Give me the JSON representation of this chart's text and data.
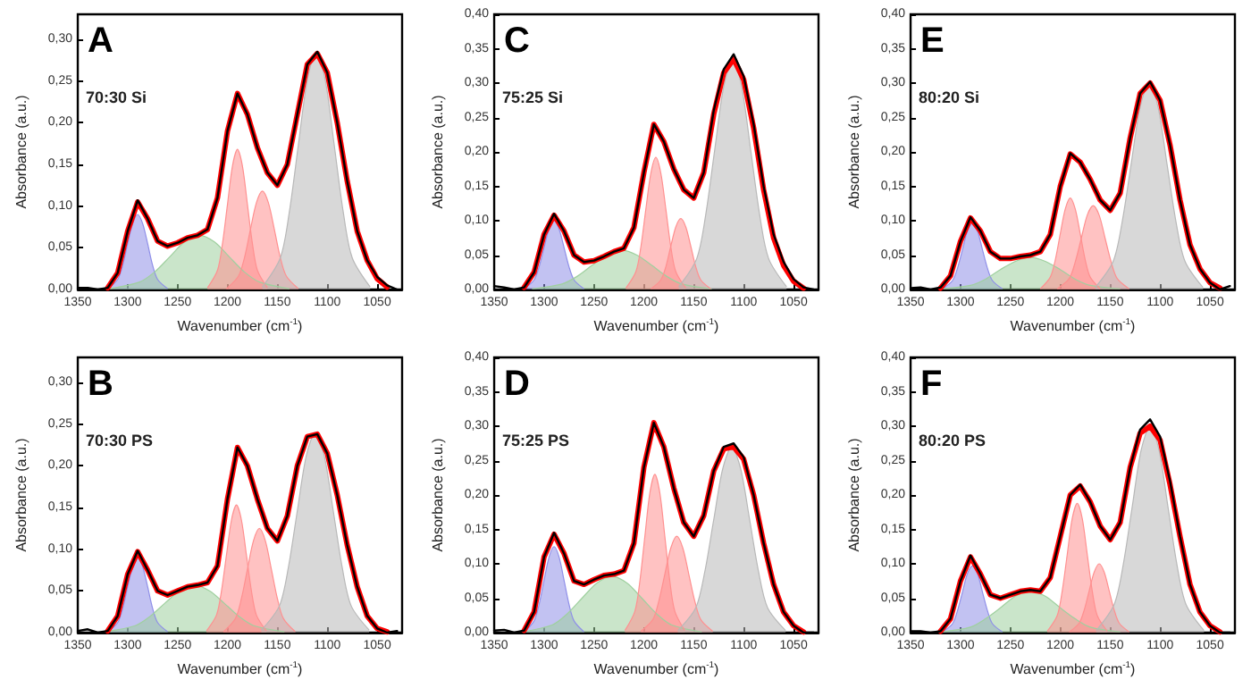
{
  "chart_data": [
    {
      "type": "line",
      "title": "A",
      "annotations": [
        "70:30 Si"
      ],
      "xlabel": "Wavenumber (cm$^{-1}$)",
      "ylabel": "Absorbance (a.u.)",
      "xlim": [
        1350,
        1025
      ],
      "xticks": [
        1350,
        1300,
        1250,
        1200,
        1150,
        1100,
        1050
      ],
      "ylim": [
        0,
        0.33
      ],
      "yticks": [
        {
          "value": 0,
          "label": "0,00"
        },
        {
          "value": 0.05,
          "label": "0,05"
        },
        {
          "value": 0.1,
          "label": "0,10"
        },
        {
          "value": 0.15,
          "label": "0,15"
        },
        {
          "value": 0.2,
          "label": "0,20"
        },
        {
          "value": 0.25,
          "label": "0,25"
        },
        {
          "value": 0.3,
          "label": "0,30"
        }
      ],
      "x": [
        1350,
        1340,
        1330,
        1320,
        1310,
        1300,
        1290,
        1280,
        1270,
        1260,
        1250,
        1240,
        1230,
        1220,
        1210,
        1200,
        1190,
        1180,
        1170,
        1160,
        1150,
        1140,
        1130,
        1120,
        1110,
        1100,
        1090,
        1080,
        1070,
        1060,
        1050,
        1040,
        1030
      ],
      "series": [
        {
          "type": "area",
          "color": "#8f8fe8",
          "x": [
            1260,
            1270,
            1275,
            1280,
            1285,
            1290,
            1295,
            1300,
            1305,
            1310,
            1320
          ],
          "values": [
            0.001,
            0.012,
            0.029,
            0.055,
            0.079,
            0.09,
            0.079,
            0.055,
            0.029,
            0.012,
            0.001
          ]
        },
        {
          "type": "area",
          "color": "#9fd09f",
          "x": [
            1138,
            1168,
            1183,
            1198,
            1213,
            1228,
            1243,
            1258,
            1273,
            1288,
            1318
          ],
          "values": [
            0.001,
            0.009,
            0.021,
            0.039,
            0.057,
            0.065,
            0.057,
            0.039,
            0.021,
            0.009,
            0.001
          ]
        },
        {
          "type": "area",
          "color": "#ff9090",
          "x": [
            1160,
            1170,
            1175,
            1180,
            1185,
            1190,
            1195,
            1200,
            1205,
            1210,
            1220
          ],
          "values": [
            0.002,
            0.023,
            0.055,
            0.102,
            0.148,
            0.168,
            0.148,
            0.102,
            0.055,
            0.023,
            0.002
          ]
        },
        {
          "type": "area",
          "color": "#ff9090",
          "x": [
            1129,
            1141,
            1147,
            1153,
            1159,
            1165,
            1171,
            1177,
            1183,
            1189,
            1201
          ],
          "values": [
            0.001,
            0.016,
            0.038,
            0.072,
            0.104,
            0.118,
            0.104,
            0.072,
            0.038,
            0.016,
            0.001
          ]
        },
        {
          "type": "area",
          "color": "#b8b8b8",
          "x": [
            1057,
            1075,
            1084,
            1093,
            1102,
            1111,
            1120,
            1129,
            1138,
            1147,
            1165
          ],
          "values": [
            0.003,
            0.038,
            0.093,
            0.173,
            0.251,
            0.285,
            0.251,
            0.173,
            0.093,
            0.038,
            0.003
          ]
        },
        {
          "type": "line",
          "color": "#ff0000",
          "x": [
            1320,
            1310,
            1300,
            1290,
            1280,
            1270,
            1260,
            1250,
            1240,
            1230,
            1220,
            1210,
            1200,
            1190,
            1180,
            1170,
            1160,
            1150,
            1140,
            1130,
            1120,
            1110,
            1100,
            1090,
            1080,
            1070,
            1060,
            1050,
            1040
          ],
          "values": [
            0.002,
            0.02,
            0.07,
            0.105,
            0.085,
            0.058,
            0.052,
            0.056,
            0.062,
            0.065,
            0.072,
            0.11,
            0.19,
            0.235,
            0.21,
            0.17,
            0.14,
            0.125,
            0.15,
            0.21,
            0.27,
            0.283,
            0.26,
            0.2,
            0.13,
            0.07,
            0.035,
            0.013,
            0.003
          ]
        },
        {
          "type": "line",
          "color": "#000000",
          "values": [
            0.002,
            0.002,
            0,
            0.002,
            0.02,
            0.07,
            0.107,
            0.085,
            0.058,
            0.052,
            0.056,
            0.062,
            0.065,
            0.072,
            0.11,
            0.19,
            0.235,
            0.21,
            0.17,
            0.14,
            0.125,
            0.15,
            0.21,
            0.27,
            0.285,
            0.26,
            0.2,
            0.13,
            0.07,
            0.035,
            0.015,
            0.005,
            0
          ]
        }
      ]
    },
    {
      "type": "line",
      "title": "C",
      "annotations": [
        "75:25 Si"
      ],
      "xlabel": "Wavenumber (cm$^{-1}$)",
      "ylabel": "Absorbance (a.u.)",
      "xlim": [
        1350,
        1025
      ],
      "xticks": [
        1350,
        1300,
        1250,
        1200,
        1150,
        1100,
        1050
      ],
      "ylim": [
        0,
        0.4
      ],
      "yticks": [
        {
          "value": 0,
          "label": "0,00"
        },
        {
          "value": 0.05,
          "label": "0,05"
        },
        {
          "value": 0.1,
          "label": "0,10"
        },
        {
          "value": 0.15,
          "label": "0,15"
        },
        {
          "value": 0.2,
          "label": "0,20"
        },
        {
          "value": 0.25,
          "label": "0,25"
        },
        {
          "value": 0.3,
          "label": "0,30"
        },
        {
          "value": 0.35,
          "label": "0,35"
        },
        {
          "value": 0.4,
          "label": "0,40"
        }
      ],
      "x": [
        1350,
        1340,
        1330,
        1320,
        1310,
        1300,
        1290,
        1280,
        1270,
        1260,
        1250,
        1240,
        1230,
        1220,
        1210,
        1200,
        1190,
        1180,
        1170,
        1160,
        1150,
        1140,
        1130,
        1120,
        1110,
        1100,
        1090,
        1080,
        1070,
        1060,
        1050,
        1040,
        1030
      ],
      "series": [
        {
          "type": "area",
          "color": "#8f8fe8",
          "x": [
            1260,
            1270,
            1275,
            1280,
            1285,
            1290,
            1295,
            1300,
            1305,
            1310,
            1320
          ],
          "values": [
            0.001,
            0.014,
            0.033,
            0.061,
            0.088,
            0.1,
            0.088,
            0.061,
            0.033,
            0.014,
            0.001
          ]
        },
        {
          "type": "area",
          "color": "#9fd09f",
          "x": [
            1132,
            1162,
            1177,
            1192,
            1207,
            1222,
            1237,
            1252,
            1267,
            1282,
            1312
          ],
          "values": [
            0.001,
            0.008,
            0.019,
            0.035,
            0.05,
            0.057,
            0.05,
            0.035,
            0.019,
            0.008,
            0.001
          ]
        },
        {
          "type": "area",
          "color": "#ff9090",
          "x": [
            1158,
            1168,
            1173,
            1178,
            1183,
            1188,
            1193,
            1198,
            1203,
            1208,
            1218
          ],
          "values": [
            0.002,
            0.026,
            0.062,
            0.117,
            0.169,
            0.192,
            0.169,
            0.117,
            0.062,
            0.026,
            0.002
          ]
        },
        {
          "type": "area",
          "color": "#ff9090",
          "x": [
            1133,
            1143,
            1148,
            1153,
            1158,
            1163,
            1168,
            1173,
            1178,
            1183,
            1193
          ],
          "values": [
            0.001,
            0.014,
            0.033,
            0.063,
            0.091,
            0.103,
            0.091,
            0.063,
            0.033,
            0.014,
            0.001
          ]
        },
        {
          "type": "area",
          "color": "#b8b8b8",
          "x": [
            1057,
            1075,
            1084,
            1093,
            1102,
            1111,
            1120,
            1129,
            1138,
            1147,
            1165
          ],
          "values": [
            0.004,
            0.045,
            0.109,
            0.203,
            0.295,
            0.335,
            0.295,
            0.203,
            0.109,
            0.045,
            0.004
          ]
        },
        {
          "type": "line",
          "color": "#ff0000",
          "x": [
            1320,
            1310,
            1300,
            1290,
            1280,
            1270,
            1260,
            1250,
            1240,
            1230,
            1220,
            1210,
            1200,
            1190,
            1180,
            1170,
            1160,
            1150,
            1140,
            1130,
            1120,
            1110,
            1100,
            1090,
            1080,
            1070,
            1060,
            1050,
            1040
          ],
          "values": [
            0.003,
            0.025,
            0.08,
            0.108,
            0.085,
            0.05,
            0.04,
            0.042,
            0.048,
            0.055,
            0.06,
            0.09,
            0.17,
            0.24,
            0.215,
            0.175,
            0.145,
            0.133,
            0.17,
            0.255,
            0.315,
            0.335,
            0.305,
            0.235,
            0.145,
            0.075,
            0.035,
            0.012,
            0.002
          ]
        },
        {
          "type": "line",
          "color": "#000000",
          "values": [
            0.005,
            0.003,
            0,
            0.003,
            0.025,
            0.08,
            0.11,
            0.085,
            0.05,
            0.04,
            0.042,
            0.048,
            0.055,
            0.06,
            0.09,
            0.17,
            0.24,
            0.215,
            0.175,
            0.145,
            0.133,
            0.17,
            0.26,
            0.32,
            0.342,
            0.31,
            0.24,
            0.15,
            0.08,
            0.04,
            0.015,
            0.003,
            0
          ]
        }
      ]
    },
    {
      "type": "line",
      "title": "E",
      "annotations": [
        "80:20 Si"
      ],
      "xlabel": "Wavenumber (cm$^{-1}$)",
      "ylabel": "Absorbance (a.u.)",
      "xlim": [
        1350,
        1025
      ],
      "xticks": [
        1350,
        1300,
        1250,
        1200,
        1150,
        1100,
        1050
      ],
      "ylim": [
        0,
        0.4
      ],
      "yticks": [
        {
          "value": 0,
          "label": "0,00"
        },
        {
          "value": 0.05,
          "label": "0,05"
        },
        {
          "value": 0.1,
          "label": "0,10"
        },
        {
          "value": 0.15,
          "label": "0,15"
        },
        {
          "value": 0.2,
          "label": "0,20"
        },
        {
          "value": 0.25,
          "label": "0,25"
        },
        {
          "value": 0.3,
          "label": "0,30"
        },
        {
          "value": 0.35,
          "label": "0,35"
        },
        {
          "value": 0.4,
          "label": "0,40"
        }
      ],
      "x": [
        1350,
        1340,
        1330,
        1320,
        1310,
        1300,
        1290,
        1280,
        1270,
        1260,
        1250,
        1240,
        1230,
        1220,
        1210,
        1200,
        1190,
        1180,
        1170,
        1160,
        1150,
        1140,
        1130,
        1120,
        1110,
        1100,
        1090,
        1080,
        1070,
        1060,
        1050,
        1040,
        1030
      ],
      "series": [
        {
          "type": "area",
          "color": "#8f8fe8",
          "x": [
            1258,
            1268,
            1273,
            1278,
            1283,
            1288,
            1293,
            1298,
            1303,
            1308,
            1318
          ],
          "values": [
            0.001,
            0.013,
            0.031,
            0.058,
            0.085,
            0.096,
            0.085,
            0.058,
            0.031,
            0.013,
            0.001
          ]
        },
        {
          "type": "area",
          "color": "#9fd09f",
          "x": [
            1140,
            1170,
            1185,
            1200,
            1215,
            1230,
            1245,
            1260,
            1275,
            1290,
            1320
          ],
          "values": [
            0.001,
            0.006,
            0.015,
            0.029,
            0.041,
            0.047,
            0.041,
            0.029,
            0.015,
            0.006,
            0.001
          ]
        },
        {
          "type": "area",
          "color": "#ff9090",
          "x": [
            1160,
            1170,
            1175,
            1180,
            1185,
            1190,
            1195,
            1200,
            1205,
            1210,
            1220
          ],
          "values": [
            0.001,
            0.018,
            0.043,
            0.081,
            0.117,
            0.133,
            0.117,
            0.081,
            0.043,
            0.018,
            0.001
          ]
        },
        {
          "type": "area",
          "color": "#ff9090",
          "x": [
            1131,
            1143,
            1149,
            1155,
            1161,
            1167,
            1173,
            1179,
            1185,
            1191,
            1203
          ],
          "values": [
            0.001,
            0.016,
            0.04,
            0.074,
            0.108,
            0.122,
            0.108,
            0.074,
            0.04,
            0.016,
            0.001
          ]
        },
        {
          "type": "area",
          "color": "#b8b8b8",
          "x": [
            1057,
            1075,
            1084,
            1093,
            1102,
            1111,
            1120,
            1129,
            1138,
            1147,
            1165
          ],
          "values": [
            0.003,
            0.041,
            0.098,
            0.182,
            0.265,
            0.3,
            0.265,
            0.182,
            0.098,
            0.041,
            0.003
          ]
        },
        {
          "type": "line",
          "color": "#ff0000",
          "x": [
            1320,
            1310,
            1300,
            1290,
            1280,
            1270,
            1260,
            1250,
            1240,
            1230,
            1220,
            1210,
            1200,
            1190,
            1180,
            1170,
            1160,
            1150,
            1140,
            1130,
            1120,
            1110,
            1100,
            1090,
            1080,
            1070,
            1060,
            1050,
            1040
          ],
          "values": [
            0.002,
            0.02,
            0.07,
            0.104,
            0.085,
            0.055,
            0.045,
            0.045,
            0.048,
            0.05,
            0.055,
            0.08,
            0.15,
            0.197,
            0.185,
            0.16,
            0.13,
            0.115,
            0.14,
            0.22,
            0.285,
            0.3,
            0.275,
            0.21,
            0.13,
            0.065,
            0.03,
            0.01,
            0.002
          ]
        },
        {
          "type": "line",
          "color": "#000000",
          "values": [
            0.002,
            0.003,
            0,
            0.003,
            0.02,
            0.07,
            0.105,
            0.085,
            0.055,
            0.045,
            0.045,
            0.048,
            0.05,
            0.055,
            0.08,
            0.15,
            0.198,
            0.185,
            0.16,
            0.13,
            0.115,
            0.14,
            0.22,
            0.285,
            0.302,
            0.275,
            0.21,
            0.13,
            0.065,
            0.03,
            0.01,
            0,
            0.005
          ]
        }
      ]
    },
    {
      "type": "line",
      "title": "B",
      "annotations": [
        "70:30 PS"
      ],
      "xlabel": "Wavenumber (cm$^{-1}$)",
      "ylabel": "Absorbance (a.u.)",
      "xlim": [
        1350,
        1025
      ],
      "xticks": [
        1350,
        1300,
        1250,
        1200,
        1150,
        1100,
        1050
      ],
      "ylim": [
        0,
        0.33
      ],
      "yticks": [
        {
          "value": 0,
          "label": "0,00"
        },
        {
          "value": 0.05,
          "label": "0,05"
        },
        {
          "value": 0.1,
          "label": "0,10"
        },
        {
          "value": 0.15,
          "label": "0,15"
        },
        {
          "value": 0.2,
          "label": "0,20"
        },
        {
          "value": 0.25,
          "label": "0,25"
        },
        {
          "value": 0.3,
          "label": "0,30"
        }
      ],
      "x": [
        1350,
        1340,
        1330,
        1320,
        1310,
        1300,
        1290,
        1280,
        1270,
        1260,
        1250,
        1240,
        1230,
        1220,
        1210,
        1200,
        1190,
        1180,
        1170,
        1160,
        1150,
        1140,
        1130,
        1120,
        1110,
        1100,
        1090,
        1080,
        1070,
        1060,
        1050,
        1040,
        1030
      ],
      "series": [
        {
          "type": "area",
          "color": "#8f8fe8",
          "x": [
            1260,
            1270,
            1275,
            1280,
            1285,
            1290,
            1295,
            1300,
            1305,
            1310,
            1320
          ],
          "values": [
            0.001,
            0.012,
            0.029,
            0.055,
            0.079,
            0.09,
            0.079,
            0.055,
            0.029,
            0.012,
            0.001
          ]
        },
        {
          "type": "area",
          "color": "#9fd09f",
          "x": [
            1143,
            1173,
            1188,
            1203,
            1218,
            1233,
            1248,
            1263,
            1278,
            1293,
            1323
          ],
          "values": [
            0.001,
            0.008,
            0.019,
            0.035,
            0.05,
            0.057,
            0.05,
            0.035,
            0.019,
            0.008,
            0.001
          ]
        },
        {
          "type": "area",
          "color": "#ff9090",
          "x": [
            1161,
            1171,
            1176,
            1181,
            1186,
            1191,
            1196,
            1201,
            1206,
            1211,
            1221
          ],
          "values": [
            0.002,
            0.021,
            0.05,
            0.093,
            0.135,
            0.153,
            0.135,
            0.093,
            0.05,
            0.021,
            0.002
          ]
        },
        {
          "type": "area",
          "color": "#ff9090",
          "x": [
            1132,
            1144,
            1150,
            1156,
            1162,
            1168,
            1174,
            1180,
            1186,
            1192,
            1204
          ],
          "values": [
            0.001,
            0.017,
            0.041,
            0.076,
            0.11,
            0.125,
            0.11,
            0.076,
            0.041,
            0.017,
            0.001
          ]
        },
        {
          "type": "area",
          "color": "#b8b8b8",
          "x": [
            1058,
            1076,
            1085,
            1094,
            1103,
            1112,
            1121,
            1130,
            1139,
            1148,
            1166
          ],
          "values": [
            0.003,
            0.032,
            0.078,
            0.146,
            0.212,
            0.24,
            0.212,
            0.146,
            0.078,
            0.032,
            0.003
          ]
        },
        {
          "type": "line",
          "color": "#ff0000",
          "x": [
            1320,
            1310,
            1300,
            1290,
            1280,
            1270,
            1260,
            1250,
            1240,
            1230,
            1220,
            1210,
            1200,
            1190,
            1180,
            1170,
            1160,
            1150,
            1140,
            1130,
            1120,
            1110,
            1100,
            1090,
            1080,
            1070,
            1060,
            1050,
            1040
          ],
          "values": [
            0.002,
            0.02,
            0.07,
            0.097,
            0.075,
            0.05,
            0.045,
            0.05,
            0.055,
            0.057,
            0.06,
            0.08,
            0.16,
            0.222,
            0.2,
            0.16,
            0.125,
            0.11,
            0.14,
            0.2,
            0.235,
            0.238,
            0.215,
            0.165,
            0.105,
            0.055,
            0.02,
            0.005,
            0.001
          ]
        },
        {
          "type": "line",
          "color": "#000000",
          "values": [
            0.002,
            0.004,
            0,
            0.002,
            0.02,
            0.07,
            0.098,
            0.075,
            0.05,
            0.045,
            0.05,
            0.055,
            0.057,
            0.06,
            0.08,
            0.16,
            0.222,
            0.2,
            0.16,
            0.125,
            0.11,
            0.14,
            0.2,
            0.235,
            0.238,
            0.215,
            0.165,
            0.105,
            0.055,
            0.02,
            0.005,
            0,
            0.002
          ]
        }
      ]
    },
    {
      "type": "line",
      "title": "D",
      "annotations": [
        "75:25 PS"
      ],
      "xlabel": "Wavenumber (cm$^{-1}$)",
      "ylabel": "Absorbance (a.u.)",
      "xlim": [
        1350,
        1025
      ],
      "xticks": [
        1350,
        1300,
        1250,
        1200,
        1150,
        1100,
        1050
      ],
      "ylim": [
        0,
        0.4
      ],
      "yticks": [
        {
          "value": 0,
          "label": "0,00"
        },
        {
          "value": 0.05,
          "label": "0,05"
        },
        {
          "value": 0.1,
          "label": "0,10"
        },
        {
          "value": 0.15,
          "label": "0,15"
        },
        {
          "value": 0.2,
          "label": "0,20"
        },
        {
          "value": 0.25,
          "label": "0,25"
        },
        {
          "value": 0.3,
          "label": "0,30"
        },
        {
          "value": 0.35,
          "label": "0,35"
        },
        {
          "value": 0.4,
          "label": "0,40"
        }
      ],
      "x": [
        1350,
        1340,
        1330,
        1320,
        1310,
        1300,
        1290,
        1280,
        1270,
        1260,
        1250,
        1240,
        1230,
        1220,
        1210,
        1200,
        1190,
        1180,
        1170,
        1160,
        1150,
        1140,
        1130,
        1120,
        1110,
        1100,
        1090,
        1080,
        1070,
        1060,
        1050,
        1040,
        1030
      ],
      "series": [
        {
          "type": "area",
          "color": "#8f8fe8",
          "x": [
            1260,
            1270,
            1275,
            1280,
            1285,
            1290,
            1295,
            1300,
            1305,
            1310,
            1320
          ],
          "values": [
            0.001,
            0.017,
            0.041,
            0.076,
            0.11,
            0.125,
            0.11,
            0.076,
            0.041,
            0.017,
            0.001
          ]
        },
        {
          "type": "area",
          "color": "#9fd09f",
          "x": [
            1142,
            1172,
            1187,
            1202,
            1217,
            1232,
            1247,
            1262,
            1277,
            1292,
            1322
          ],
          "values": [
            0.001,
            0.011,
            0.027,
            0.05,
            0.072,
            0.082,
            0.072,
            0.05,
            0.027,
            0.011,
            0.001
          ]
        },
        {
          "type": "area",
          "color": "#ff9090",
          "x": [
            1159,
            1169,
            1174,
            1179,
            1184,
            1189,
            1194,
            1199,
            1204,
            1209,
            1219
          ],
          "values": [
            0.003,
            0.031,
            0.075,
            0.14,
            0.203,
            0.23,
            0.203,
            0.14,
            0.075,
            0.031,
            0.003
          ]
        },
        {
          "type": "area",
          "color": "#ff9090",
          "x": [
            1131,
            1143,
            1149,
            1155,
            1161,
            1167,
            1173,
            1179,
            1185,
            1191,
            1203
          ],
          "values": [
            0.002,
            0.019,
            0.046,
            0.085,
            0.123,
            0.14,
            0.123,
            0.085,
            0.046,
            0.019,
            0.002
          ]
        },
        {
          "type": "area",
          "color": "#b8b8b8",
          "x": [
            1058,
            1076,
            1085,
            1094,
            1103,
            1112,
            1121,
            1130,
            1139,
            1148,
            1166
          ],
          "values": [
            0.003,
            0.036,
            0.088,
            0.164,
            0.238,
            0.27,
            0.238,
            0.164,
            0.088,
            0.036,
            0.003
          ]
        },
        {
          "type": "line",
          "color": "#ff0000",
          "x": [
            1320,
            1310,
            1300,
            1290,
            1280,
            1270,
            1260,
            1250,
            1240,
            1230,
            1220,
            1210,
            1200,
            1190,
            1180,
            1170,
            1160,
            1150,
            1140,
            1130,
            1120,
            1110,
            1100,
            1090,
            1080,
            1070,
            1060,
            1050,
            1040
          ],
          "values": [
            0.003,
            0.03,
            0.11,
            0.143,
            0.115,
            0.075,
            0.07,
            0.077,
            0.083,
            0.085,
            0.09,
            0.13,
            0.24,
            0.305,
            0.27,
            0.21,
            0.16,
            0.14,
            0.17,
            0.235,
            0.267,
            0.27,
            0.252,
            0.2,
            0.13,
            0.07,
            0.03,
            0.01,
            0.001
          ]
        },
        {
          "type": "line",
          "color": "#000000",
          "values": [
            0.003,
            0.004,
            0,
            0.003,
            0.03,
            0.11,
            0.145,
            0.115,
            0.075,
            0.07,
            0.077,
            0.083,
            0.085,
            0.09,
            0.13,
            0.24,
            0.305,
            0.27,
            0.21,
            0.16,
            0.14,
            0.17,
            0.235,
            0.27,
            0.275,
            0.255,
            0.2,
            0.13,
            0.07,
            0.03,
            0.01,
            0,
            0
          ]
        }
      ]
    },
    {
      "type": "line",
      "title": "F",
      "annotations": [
        "80:20 PS"
      ],
      "xlabel": "Wavenumber (cm$^{-1}$)",
      "ylabel": "Absorbance (a.u.)",
      "xlim": [
        1350,
        1025
      ],
      "xticks": [
        1350,
        1300,
        1250,
        1200,
        1150,
        1100,
        1050
      ],
      "ylim": [
        0,
        0.4
      ],
      "yticks": [
        {
          "value": 0,
          "label": "0,00"
        },
        {
          "value": 0.05,
          "label": "0,05"
        },
        {
          "value": 0.1,
          "label": "0,10"
        },
        {
          "value": 0.15,
          "label": "0,15"
        },
        {
          "value": 0.2,
          "label": "0,20"
        },
        {
          "value": 0.25,
          "label": "0,25"
        },
        {
          "value": 0.3,
          "label": "0,30"
        },
        {
          "value": 0.35,
          "label": "0,35"
        },
        {
          "value": 0.4,
          "label": "0,40"
        }
      ],
      "x": [
        1350,
        1340,
        1330,
        1320,
        1310,
        1300,
        1290,
        1280,
        1270,
        1260,
        1250,
        1240,
        1230,
        1220,
        1210,
        1200,
        1190,
        1180,
        1170,
        1160,
        1150,
        1140,
        1130,
        1120,
        1110,
        1100,
        1090,
        1080,
        1070,
        1060,
        1050,
        1040,
        1030
      ],
      "series": [
        {
          "type": "area",
          "color": "#8f8fe8",
          "x": [
            1258,
            1268,
            1273,
            1278,
            1283,
            1288,
            1293,
            1298,
            1303,
            1308,
            1318
          ],
          "values": [
            0.001,
            0.013,
            0.032,
            0.059,
            0.086,
            0.097,
            0.086,
            0.059,
            0.032,
            0.013,
            0.001
          ]
        },
        {
          "type": "area",
          "color": "#9fd09f",
          "x": [
            1140,
            1170,
            1185,
            1200,
            1215,
            1230,
            1245,
            1260,
            1275,
            1290,
            1320
          ],
          "values": [
            0.001,
            0.008,
            0.02,
            0.036,
            0.053,
            0.06,
            0.053,
            0.036,
            0.02,
            0.008,
            0.001
          ]
        },
        {
          "type": "area",
          "color": "#ff9090",
          "x": [
            1153,
            1163,
            1168,
            1173,
            1178,
            1183,
            1188,
            1193,
            1198,
            1203,
            1213
          ],
          "values": [
            0.002,
            0.025,
            0.061,
            0.114,
            0.166,
            0.188,
            0.166,
            0.114,
            0.061,
            0.025,
            0.002
          ]
        },
        {
          "type": "area",
          "color": "#ff9090",
          "x": [
            1131,
            1141,
            1146,
            1151,
            1156,
            1161,
            1166,
            1171,
            1176,
            1181,
            1191
          ],
          "values": [
            0.001,
            0.014,
            0.033,
            0.061,
            0.088,
            0.1,
            0.088,
            0.061,
            0.033,
            0.014,
            0.001
          ]
        },
        {
          "type": "area",
          "color": "#b8b8b8",
          "x": [
            1056,
            1074,
            1083,
            1092,
            1101,
            1110,
            1119,
            1128,
            1137,
            1146,
            1164
          ],
          "values": [
            0.003,
            0.041,
            0.098,
            0.182,
            0.265,
            0.3,
            0.265,
            0.182,
            0.098,
            0.041,
            0.003
          ]
        },
        {
          "type": "line",
          "color": "#ff0000",
          "x": [
            1320,
            1310,
            1300,
            1290,
            1280,
            1270,
            1260,
            1250,
            1240,
            1230,
            1220,
            1210,
            1200,
            1190,
            1180,
            1170,
            1160,
            1150,
            1140,
            1130,
            1120,
            1110,
            1100,
            1090,
            1080,
            1070,
            1060,
            1050,
            1040
          ],
          "values": [
            0.002,
            0.02,
            0.075,
            0.11,
            0.085,
            0.055,
            0.05,
            0.055,
            0.06,
            0.062,
            0.06,
            0.08,
            0.14,
            0.2,
            0.213,
            0.19,
            0.155,
            0.135,
            0.16,
            0.24,
            0.29,
            0.3,
            0.28,
            0.215,
            0.14,
            0.07,
            0.03,
            0.01,
            0.001
          ]
        },
        {
          "type": "line",
          "color": "#000000",
          "values": [
            0.002,
            0.002,
            0,
            0.002,
            0.02,
            0.075,
            0.112,
            0.085,
            0.055,
            0.05,
            0.055,
            0.06,
            0.062,
            0.06,
            0.08,
            0.14,
            0.2,
            0.215,
            0.19,
            0.155,
            0.135,
            0.16,
            0.24,
            0.295,
            0.31,
            0.285,
            0.22,
            0.14,
            0.07,
            0.03,
            0.01,
            0,
            0
          ]
        }
      ]
    }
  ]
}
